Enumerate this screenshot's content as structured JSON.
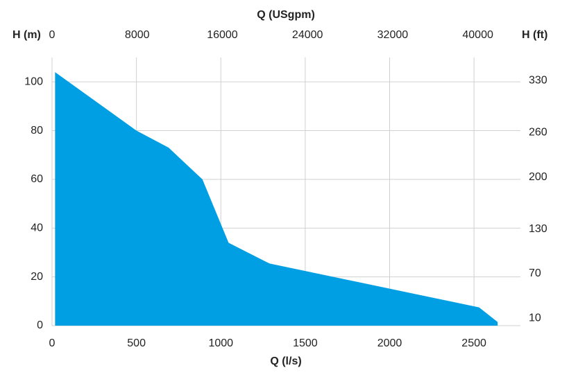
{
  "chart_data": {
    "type": "area",
    "xlabel": "Q (l/s)",
    "x2label": "Q (USgpm)",
    "ylabel": "H (m)",
    "y2label": "H (ft)",
    "x": [
      18,
      500,
      691,
      891,
      1046,
      1288,
      2530,
      2640
    ],
    "series": [
      {
        "color": "#009fe3",
        "values": [
          104,
          80,
          73,
          60,
          34,
          25.5,
          7.5,
          1.5
        ]
      }
    ],
    "xlim": [
      0,
      2775
    ],
    "xticks": [
      0,
      500,
      1000,
      1500,
      2000,
      2500
    ],
    "x2lim": [
      0,
      44000
    ],
    "x2ticks": [
      0,
      8000,
      16000,
      24000,
      32000,
      40000
    ],
    "ylim": [
      0,
      110
    ],
    "yticks": [
      0,
      20,
      40,
      60,
      80,
      100
    ],
    "y2lim": [
      0,
      361
    ],
    "y2ticks": [
      10,
      70,
      130,
      200,
      260,
      330
    ],
    "grid": true
  }
}
